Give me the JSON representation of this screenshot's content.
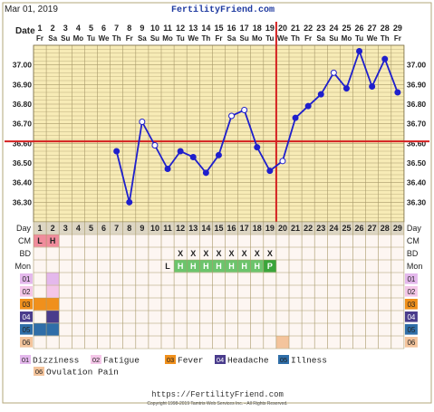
{
  "header": {
    "date_label": "Mar 01, 2019",
    "site_title": "FertilityFriend.com"
  },
  "row_labels": {
    "date": "Date",
    "day": "Day",
    "cm": "CM",
    "bd": "BD",
    "mon": "Mon"
  },
  "chart_data": {
    "type": "line",
    "days": [
      1,
      2,
      3,
      4,
      5,
      6,
      7,
      8,
      9,
      10,
      11,
      12,
      13,
      14,
      15,
      16,
      17,
      18,
      19,
      20,
      21,
      22,
      23,
      24,
      25,
      26,
      27,
      28,
      29
    ],
    "dates": [
      "1",
      "2",
      "3",
      "4",
      "5",
      "6",
      "7",
      "8",
      "9",
      "10",
      "11",
      "12",
      "13",
      "14",
      "15",
      "16",
      "17",
      "18",
      "19",
      "20",
      "21",
      "22",
      "23",
      "24",
      "25",
      "26",
      "27",
      "28",
      "29"
    ],
    "weekdays": [
      "Fr",
      "Sa",
      "Su",
      "Mo",
      "Tu",
      "We",
      "Th",
      "Fr",
      "Sa",
      "Su",
      "Mo",
      "Tu",
      "We",
      "Th",
      "Fr",
      "Sa",
      "Su",
      "Mo",
      "Tu",
      "We",
      "Th",
      "Fr",
      "Sa",
      "Su",
      "Mo",
      "Tu",
      "We",
      "Th",
      "Fr"
    ],
    "temperatures": [
      null,
      null,
      null,
      null,
      null,
      null,
      36.56,
      36.3,
      36.71,
      36.59,
      36.47,
      36.56,
      36.53,
      36.45,
      36.54,
      36.74,
      36.77,
      36.58,
      36.46,
      36.51,
      36.73,
      36.79,
      36.85,
      36.96,
      36.88,
      37.07,
      36.89,
      37.03,
      36.86
    ],
    "open_markers": [
      9,
      10,
      16,
      17,
      20,
      24
    ],
    "y_ticks": [
      "37.00",
      "36.90",
      "36.80",
      "36.70",
      "36.60",
      "36.50",
      "36.40",
      "36.30"
    ],
    "ylim": [
      36.2,
      37.1
    ],
    "coverline": 36.61,
    "ovulation_day": 20,
    "series_color": "#1f1fcc",
    "coverline_color": "#d42020",
    "grid": true
  },
  "cm": [
    "L",
    "H",
    "",
    "",
    "",
    "",
    "",
    "",
    "",
    "",
    "",
    "",
    "",
    "",
    "",
    "",
    "",
    "",
    "",
    "",
    "",
    "",
    "",
    "",
    "",
    "",
    "",
    "",
    ""
  ],
  "bd": [
    "",
    "",
    "",
    "",
    "",
    "",
    "",
    "",
    "",
    "",
    "",
    "X",
    "X",
    "X",
    "X",
    "X",
    "X",
    "X",
    "X",
    "",
    "",
    "",
    "",
    "",
    "",
    "",
    "",
    "",
    ""
  ],
  "mon": [
    "",
    "",
    "",
    "",
    "",
    "",
    "",
    "",
    "",
    "",
    "L",
    "H",
    "H",
    "H",
    "H",
    "H",
    "H",
    "H",
    "P",
    "",
    "",
    "",
    "",
    "",
    "",
    "",
    "",
    "",
    ""
  ],
  "symptoms": [
    {
      "code": "01",
      "label": "Dizziness",
      "color": "#e4b8ec",
      "days": [
        2
      ]
    },
    {
      "code": "02",
      "label": "Fatigue",
      "color": "#f4c6e8",
      "days": [
        2
      ]
    },
    {
      "code": "03",
      "label": "Fever",
      "color": "#f0901c",
      "days": [
        1,
        2
      ]
    },
    {
      "code": "04",
      "label": "Headache",
      "color": "#4a3c8c",
      "days": [
        2
      ]
    },
    {
      "code": "05",
      "label": "Illness",
      "color": "#2f6ea8",
      "days": [
        1,
        2
      ]
    },
    {
      "code": "06",
      "label": "Ovulation Pain",
      "color": "#f4c49c",
      "days": [
        20
      ]
    }
  ],
  "legend": [
    {
      "code": "01",
      "label": "Dizziness"
    },
    {
      "code": "02",
      "label": "Fatigue"
    },
    {
      "code": "03",
      "label": "Fever"
    },
    {
      "code": "04",
      "label": "Headache"
    },
    {
      "code": "05",
      "label": "Illness"
    },
    {
      "code": "06",
      "label": "Ovulation Pain"
    }
  ],
  "footer": {
    "url": "https://FertilityFriend.com",
    "copyright": "Copyright 1998-2019 Tamtris Web Services Inc. - All Rights Reserved."
  },
  "colors": {
    "chart_bg": "#f7ebb6",
    "grid": "#a89a6a",
    "lower_bg": "#fdf6f2",
    "mon_fill": "#6cc46c",
    "mon_peak": "#3aa53a",
    "cm_fill": "#f08c9c"
  }
}
